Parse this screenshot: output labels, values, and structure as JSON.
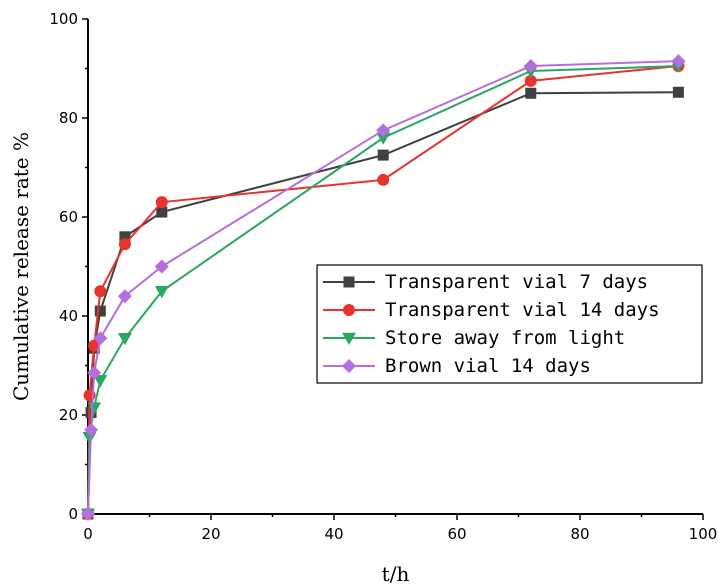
{
  "chart_data": {
    "type": "line",
    "title": "",
    "xlabel": "t/h",
    "ylabel": "Cumulative release rate %",
    "xlim": [
      0,
      100
    ],
    "ylim": [
      0,
      100
    ],
    "x_ticks": [
      "0",
      "20",
      "40",
      "60",
      "80",
      "100"
    ],
    "y_ticks": [
      "0",
      "20",
      "40",
      "60",
      "80",
      "100"
    ],
    "grid": false,
    "legend_position": "center-right",
    "series": [
      {
        "name": "Transparent vial 7 days",
        "color": "#404040",
        "marker": "square",
        "x": [
          0,
          0.5,
          1,
          2,
          6,
          12,
          48,
          72,
          96
        ],
        "y": [
          0,
          20.5,
          33.5,
          41,
          56,
          61,
          72.5,
          85,
          85.2
        ]
      },
      {
        "name": "Transparent vial 14 days",
        "color": "#e8322e",
        "marker": "circle",
        "x": [
          0,
          0.25,
          1,
          2,
          6,
          12,
          48,
          72,
          96
        ],
        "y": [
          0,
          24,
          34,
          45,
          54.5,
          63,
          67.5,
          87.5,
          90.5
        ]
      },
      {
        "name": "Store away from light",
        "color": "#2aa760",
        "marker": "triangle-down",
        "x": [
          0,
          0.25,
          1,
          2,
          6,
          12,
          48,
          72,
          96
        ],
        "y": [
          0,
          15.5,
          21.5,
          27,
          35.5,
          45,
          76,
          89.5,
          90.5
        ]
      },
      {
        "name": "Brown vial 14 days",
        "color": "#b56ee0",
        "marker": "diamond",
        "x": [
          0,
          0.5,
          1,
          2,
          6,
          12,
          48,
          72,
          96
        ],
        "y": [
          0,
          17,
          28.5,
          35.5,
          44,
          50,
          77.5,
          90.5,
          91.5
        ]
      }
    ]
  }
}
